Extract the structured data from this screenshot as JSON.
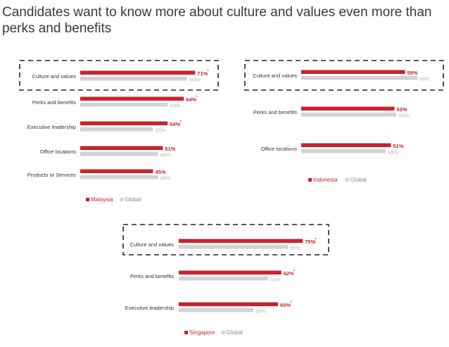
{
  "title": "Candidates want to know more about culture and values even more than perks and benefits",
  "colors": {
    "country": "#c8232c",
    "global": "#d2d2d2",
    "global_text": "#b8b8b8",
    "label": "#333333"
  },
  "chart_data": [
    {
      "type": "bar",
      "orientation": "horizontal",
      "categories": [
        "Culture and values",
        "Perks and benefits",
        "Executive leadership",
        "Office locations",
        "Products or Services"
      ],
      "series": [
        {
          "name": "Malaysia",
          "values": [
            71,
            64,
            54,
            51,
            45
          ],
          "labels": [
            "71%",
            "64%",
            "54%",
            "51%",
            "45%"
          ],
          "starred": [
            true,
            true,
            true,
            false,
            false
          ]
        },
        {
          "name": "Global",
          "values": [
            66,
            54,
            45,
            48,
            48
          ],
          "labels": [
            "66%",
            "54%",
            "45%",
            "48%",
            "48%"
          ]
        }
      ],
      "highlight_category": "Culture and values",
      "legend": [
        "Malaysia",
        "Global"
      ],
      "legend_position": "bottom-left",
      "xlim": [
        0,
        100
      ]
    },
    {
      "type": "bar",
      "orientation": "horizontal",
      "categories": [
        "Culture and values",
        "Perks and benefits",
        "Office locations"
      ],
      "series": [
        {
          "name": "Indonesia",
          "values": [
            59,
            53,
            51
          ],
          "labels": [
            "59%",
            "53%",
            "51%"
          ],
          "starred": [
            false,
            false,
            false
          ]
        },
        {
          "name": "Global",
          "values": [
            66,
            54,
            48
          ],
          "labels": [
            "66%",
            "54%",
            "48%"
          ]
        }
      ],
      "highlight_category": "Culture and values",
      "legend": [
        "Indonesia",
        "Global"
      ],
      "legend_position": "bottom-left",
      "xlim": [
        0,
        100
      ]
    },
    {
      "type": "bar",
      "orientation": "horizontal",
      "categories": [
        "Culture and values",
        "Perks and benefits",
        "Executive leadership"
      ],
      "series": [
        {
          "name": "Singapore",
          "values": [
            75,
            62,
            60
          ],
          "labels": [
            "75%",
            "62%",
            "60%"
          ],
          "starred": [
            true,
            true,
            true
          ]
        },
        {
          "name": "Global",
          "values": [
            66,
            54,
            45
          ],
          "labels": [
            "66%",
            "54%",
            "45%"
          ]
        }
      ],
      "highlight_category": "Culture and values",
      "legend": [
        "Singapore",
        "Global"
      ],
      "legend_position": "bottom-left",
      "xlim": [
        0,
        100
      ]
    }
  ]
}
